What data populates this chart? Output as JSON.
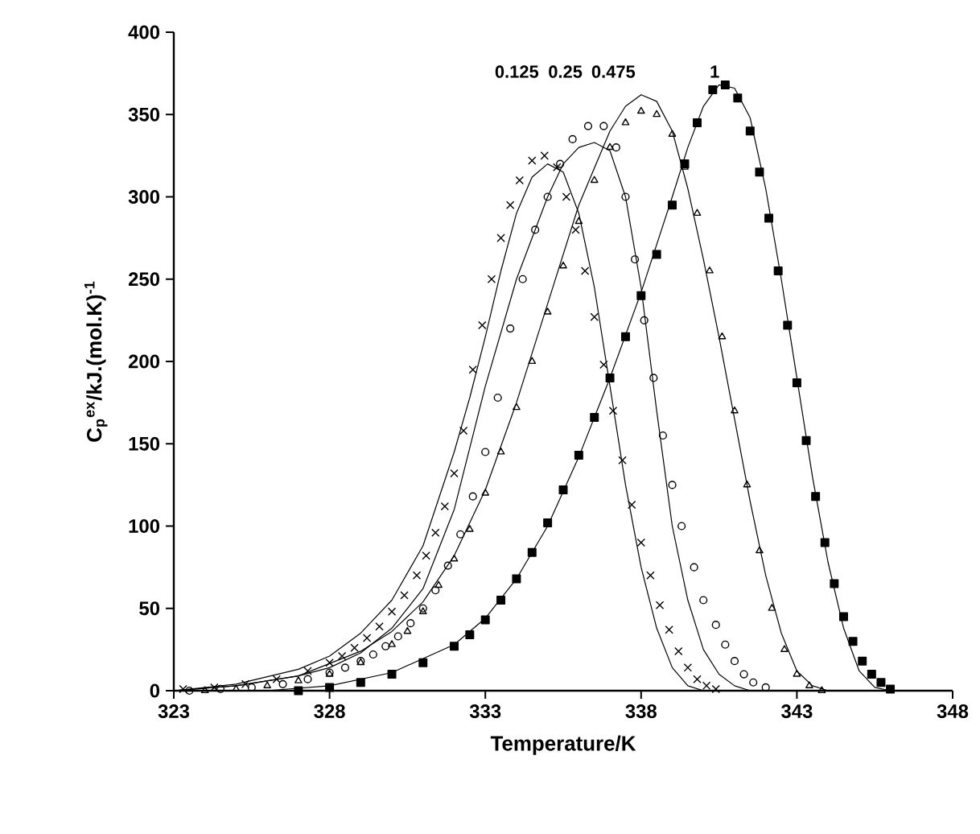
{
  "chart_data": {
    "type": "line",
    "xlabel": "Temperature/K",
    "ylabel": "C$_{p}$$^{ex}$/kJ.(mol.K)$^{-1}$",
    "xlim": [
      323,
      348
    ],
    "xticks": [
      323,
      328,
      333,
      338,
      343,
      348
    ],
    "ylim": [
      0,
      400
    ],
    "yticks": [
      0,
      50,
      100,
      150,
      200,
      250,
      300,
      350,
      400
    ],
    "grid": false,
    "annotations": [
      "0.125",
      "0.25",
      "0.475",
      "1"
    ],
    "series": [
      {
        "type": "scatter",
        "marker": "cross",
        "color": "#000000",
        "x": [
          323.3,
          324.3,
          325.3,
          326.3,
          327.3,
          328.0,
          328.4,
          328.8,
          329.2,
          329.6,
          330.0,
          330.4,
          330.8,
          331.1,
          331.4,
          331.7,
          332.0,
          332.3,
          332.6,
          332.9,
          333.2,
          333.5,
          333.8,
          334.1,
          334.5,
          334.9,
          335.3,
          335.6,
          335.9,
          336.2,
          336.5,
          336.8,
          337.1,
          337.4,
          337.7,
          338.0,
          338.3,
          338.6,
          338.9,
          339.2,
          339.5,
          339.8,
          340.1,
          340.4
        ],
        "values": [
          1,
          2,
          4,
          7,
          12,
          17,
          21,
          26,
          32,
          39,
          48,
          58,
          70,
          82,
          96,
          112,
          132,
          158,
          195,
          222,
          250,
          275,
          295,
          310,
          322,
          325,
          318,
          300,
          280,
          255,
          227,
          198,
          170,
          140,
          113,
          90,
          70,
          52,
          37,
          24,
          14,
          7,
          3,
          1
        ]
      },
      {
        "marker": "none",
        "color": "#000000",
        "x": [
          323,
          325,
          327,
          328,
          329,
          330,
          331,
          332,
          332.5,
          333,
          333.5,
          334,
          334.5,
          335,
          335.5,
          336,
          336.5,
          337,
          337.5,
          338,
          338.5,
          339,
          339.5,
          340
        ],
        "values": [
          0,
          4,
          13,
          21,
          35,
          55,
          88,
          145,
          178,
          215,
          255,
          290,
          312,
          320,
          315,
          290,
          245,
          185,
          125,
          75,
          38,
          14,
          3,
          0
        ]
      },
      {
        "type": "scatter",
        "marker": "circle",
        "color": "#000000",
        "x": [
          323.5,
          324.5,
          325.5,
          326.5,
          327.3,
          328,
          328.5,
          329,
          329.4,
          329.8,
          330.2,
          330.6,
          331,
          331.4,
          331.8,
          332.2,
          332.6,
          333,
          333.4,
          333.8,
          334.2,
          334.6,
          335,
          335.4,
          335.8,
          336.3,
          336.8,
          337.2,
          337.5,
          337.8,
          338.1,
          338.4,
          338.7,
          339.0,
          339.3,
          339.7,
          340.0,
          340.4,
          340.7,
          341.0,
          341.3,
          341.6,
          342
        ],
        "values": [
          0,
          1,
          2,
          4,
          7,
          11,
          14,
          18,
          22,
          27,
          33,
          41,
          50,
          61,
          76,
          95,
          118,
          145,
          178,
          220,
          250,
          280,
          300,
          320,
          335,
          343,
          343,
          330,
          300,
          262,
          225,
          190,
          155,
          125,
          100,
          75,
          55,
          40,
          28,
          18,
          10,
          5,
          2
        ]
      },
      {
        "marker": "none",
        "color": "#000000",
        "x": [
          323,
          325,
          327,
          328,
          329,
          330,
          331,
          332,
          333,
          334,
          335,
          335.5,
          336,
          336.5,
          337,
          337.5,
          338,
          338.5,
          339,
          339.5,
          340,
          340.5,
          341,
          341.5
        ],
        "values": [
          0,
          3,
          9,
          14,
          23,
          38,
          62,
          110,
          185,
          250,
          300,
          320,
          330,
          333,
          328,
          300,
          245,
          170,
          100,
          55,
          25,
          10,
          3,
          0
        ]
      },
      {
        "type": "scatter",
        "marker": "triangle",
        "color": "#000000",
        "x": [
          324,
          325,
          326,
          327,
          328,
          329,
          330,
          330.5,
          331,
          331.5,
          332,
          332.5,
          333,
          333.5,
          334,
          334.5,
          335,
          335.5,
          336,
          336.5,
          337,
          337.5,
          338,
          338.5,
          339,
          339.4,
          339.8,
          340.2,
          340.6,
          341,
          341.4,
          341.8,
          342.2,
          342.6,
          343,
          343.4,
          343.8
        ],
        "values": [
          0,
          1,
          3,
          6,
          10,
          17,
          28,
          36,
          48,
          64,
          80,
          98,
          120,
          145,
          172,
          200,
          230,
          258,
          285,
          310,
          330,
          345,
          352,
          350,
          338,
          318,
          290,
          255,
          215,
          170,
          125,
          85,
          50,
          25,
          10,
          3,
          0
        ]
      },
      {
        "marker": "none",
        "color": "#000000",
        "x": [
          323,
          325,
          327,
          329,
          330,
          331,
          332,
          333,
          334,
          335,
          336,
          337,
          337.5,
          338,
          338.5,
          339,
          339.5,
          340,
          340.5,
          341,
          341.5,
          342,
          342.5,
          343,
          343.5,
          344
        ],
        "values": [
          0,
          3,
          9,
          24,
          36,
          54,
          82,
          122,
          175,
          235,
          295,
          340,
          355,
          362,
          358,
          340,
          305,
          262,
          215,
          165,
          115,
          70,
          35,
          12,
          3,
          0
        ]
      },
      {
        "type": "scatter",
        "marker": "square",
        "color": "#000000",
        "x": [
          327,
          328,
          329,
          330,
          331,
          332,
          332.5,
          333,
          333.5,
          334,
          334.5,
          335,
          335.5,
          336,
          336.5,
          337,
          337.5,
          338,
          338.5,
          339,
          339.4,
          339.8,
          340.3,
          340.7,
          341.1,
          341.5,
          341.8,
          342.1,
          342.4,
          342.7,
          343,
          343.3,
          343.6,
          343.9,
          344.2,
          344.5,
          344.8,
          345.1,
          345.4,
          345.7,
          346
        ],
        "values": [
          0,
          2,
          5,
          10,
          17,
          27,
          34,
          43,
          55,
          68,
          84,
          102,
          122,
          143,
          166,
          190,
          215,
          240,
          265,
          295,
          320,
          345,
          365,
          368,
          360,
          340,
          315,
          287,
          255,
          222,
          187,
          152,
          118,
          90,
          65,
          45,
          30,
          18,
          10,
          5,
          1
        ]
      },
      {
        "marker": "none",
        "color": "#000000",
        "x": [
          326,
          328,
          330,
          332,
          333,
          334,
          335,
          336,
          337,
          338,
          339,
          339.5,
          340,
          340.5,
          341,
          341.5,
          342,
          342.5,
          343,
          343.5,
          344,
          344.5,
          345,
          345.5,
          346
        ],
        "values": [
          0,
          3,
          11,
          28,
          44,
          68,
          100,
          142,
          190,
          242,
          300,
          330,
          355,
          368,
          366,
          348,
          305,
          250,
          190,
          130,
          78,
          38,
          12,
          2,
          0
        ]
      }
    ]
  }
}
